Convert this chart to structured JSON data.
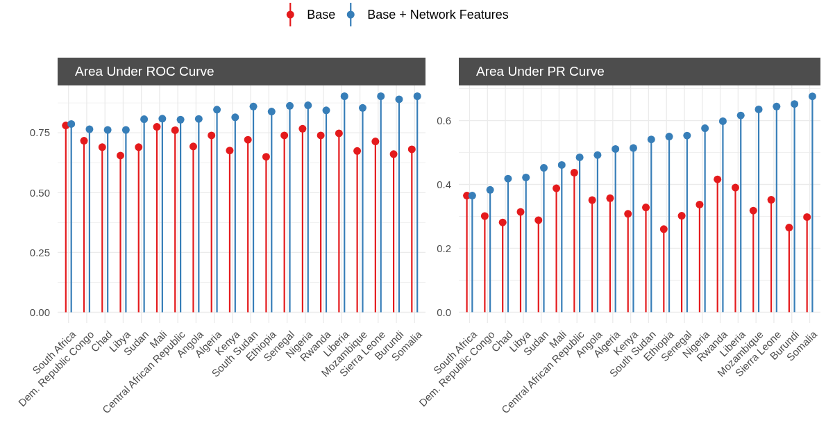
{
  "chart_data": [
    {
      "type": "lollipop",
      "title": "Area Under ROC Curve",
      "categories": [
        "South Africa",
        "Dem. Republic Congo",
        "Chad",
        "Libya",
        "Sudan",
        "Mali",
        "Central African Republic",
        "Angola",
        "Algeria",
        "Kenya",
        "South Sudan",
        "Ethiopia",
        "Senegal",
        "Nigeria",
        "Rwanda",
        "Liberia",
        "Mozambique",
        "Sierra Leone",
        "Burundi",
        "Somalia"
      ],
      "series": [
        {
          "name": "Base",
          "color": "#e41a1c",
          "values": [
            0.781,
            0.717,
            0.69,
            0.655,
            0.69,
            0.775,
            0.761,
            0.693,
            0.739,
            0.676,
            0.721,
            0.65,
            0.739,
            0.767,
            0.739,
            0.748,
            0.674,
            0.714,
            0.661,
            0.681
          ]
        },
        {
          "name": "Base + Network Features",
          "color": "#377eb8",
          "values": [
            0.787,
            0.765,
            0.762,
            0.762,
            0.807,
            0.809,
            0.805,
            0.808,
            0.847,
            0.815,
            0.86,
            0.839,
            0.863,
            0.865,
            0.844,
            0.903,
            0.854,
            0.903,
            0.89,
            0.903
          ]
        }
      ],
      "ylim": [
        -0.045,
        0.948
      ],
      "yticks": [
        {
          "value": 0,
          "label": "0.00"
        },
        {
          "value": 0.125,
          "label": null
        },
        0.25,
        {
          "value": 0.375,
          "label": null
        },
        {
          "value": 0.5,
          "label": "0.50"
        },
        {
          "value": 0.625,
          "label": null
        },
        0.75,
        {
          "value": 0.875,
          "label": null
        }
      ],
      "grid": true,
      "legend": "top",
      "marker": "circle"
    },
    {
      "type": "lollipop",
      "title": "Area Under PR Curve",
      "categories": [
        "South Africa",
        "Dem. Republic Congo",
        "Chad",
        "Libya",
        "Sudan",
        "Mali",
        "Central African Republic",
        "Angola",
        "Algeria",
        "Kenya",
        "South Sudan",
        "Ethiopia",
        "Senegal",
        "Nigeria",
        "Rwanda",
        "Liberia",
        "Mozambique",
        "Sierra Leone",
        "Burundi",
        "Somalia"
      ],
      "series": [
        {
          "color": "#e41a1c",
          "values": [
            0.365,
            0.301,
            0.281,
            0.314,
            0.288,
            0.388,
            0.437,
            0.351,
            0.357,
            0.308,
            0.328,
            0.26,
            0.302,
            0.337,
            0.416,
            0.39,
            0.318,
            0.352,
            0.265,
            0.298
          ]
        },
        {
          "color": "#377eb8",
          "values": [
            0.365,
            0.383,
            0.418,
            0.422,
            0.452,
            0.461,
            0.485,
            0.492,
            0.511,
            0.514,
            0.541,
            0.55,
            0.553,
            0.576,
            0.598,
            0.616,
            0.635,
            0.644,
            0.652,
            0.676
          ]
        }
      ],
      "ylim": [
        -0.034,
        0.71
      ],
      "yticks": [
        {
          "value": 0,
          "label": "0.0"
        },
        {
          "value": 0.1,
          "label": null
        },
        0.2,
        {
          "value": 0.3,
          "label": null
        },
        0.4,
        {
          "value": 0.5,
          "label": null
        },
        0.6,
        {
          "value": 0.7,
          "label": null
        }
      ],
      "grid": true,
      "marker": "circle"
    }
  ]
}
